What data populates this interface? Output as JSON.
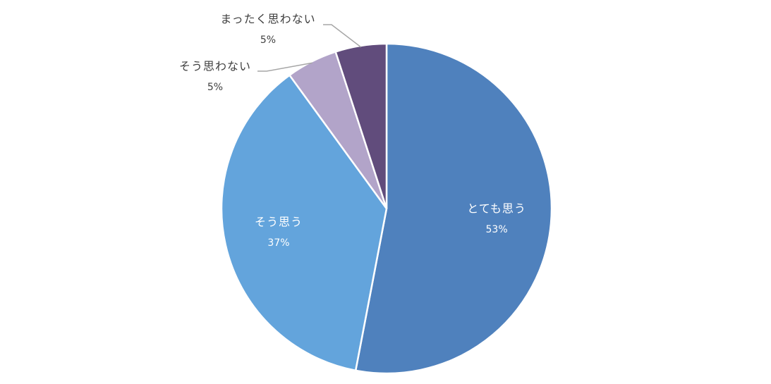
{
  "chart_data": {
    "type": "pie",
    "categories": [
      "とても思う",
      "そう思う",
      "そう思わない",
      "まったく思わない"
    ],
    "values": [
      53,
      37,
      5,
      5
    ],
    "value_labels": [
      "53%",
      "37%",
      "5%",
      "5%"
    ],
    "colors": [
      "#4f81bd",
      "#63a4dc",
      "#b2a4c9",
      "#614c7c"
    ]
  }
}
